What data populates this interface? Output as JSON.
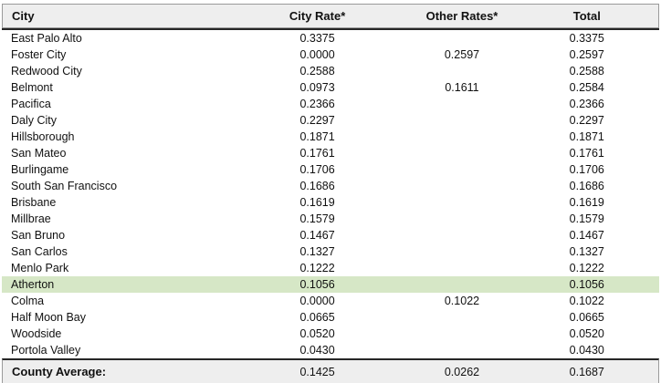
{
  "table": {
    "columns": [
      {
        "label": "City"
      },
      {
        "label": "City Rate*"
      },
      {
        "label": "Other Rates*"
      },
      {
        "label": "Total"
      }
    ],
    "rows": [
      {
        "city": "East Palo Alto",
        "city_rate": "0.3375",
        "other_rates": "",
        "total": "0.3375",
        "highlight": false
      },
      {
        "city": "Foster City",
        "city_rate": "0.0000",
        "other_rates": "0.2597",
        "total": "0.2597",
        "highlight": false
      },
      {
        "city": "Redwood City",
        "city_rate": "0.2588",
        "other_rates": "",
        "total": "0.2588",
        "highlight": false
      },
      {
        "city": "Belmont",
        "city_rate": "0.0973",
        "other_rates": "0.1611",
        "total": "0.2584",
        "highlight": false
      },
      {
        "city": "Pacifica",
        "city_rate": "0.2366",
        "other_rates": "",
        "total": "0.2366",
        "highlight": false
      },
      {
        "city": "Daly City",
        "city_rate": "0.2297",
        "other_rates": "",
        "total": "0.2297",
        "highlight": false
      },
      {
        "city": "Hillsborough",
        "city_rate": "0.1871",
        "other_rates": "",
        "total": "0.1871",
        "highlight": false
      },
      {
        "city": "San Mateo",
        "city_rate": "0.1761",
        "other_rates": "",
        "total": "0.1761",
        "highlight": false
      },
      {
        "city": "Burlingame",
        "city_rate": "0.1706",
        "other_rates": "",
        "total": "0.1706",
        "highlight": false
      },
      {
        "city": "South San Francisco",
        "city_rate": "0.1686",
        "other_rates": "",
        "total": "0.1686",
        "highlight": false
      },
      {
        "city": "Brisbane",
        "city_rate": "0.1619",
        "other_rates": "",
        "total": "0.1619",
        "highlight": false
      },
      {
        "city": "Millbrae",
        "city_rate": "0.1579",
        "other_rates": "",
        "total": "0.1579",
        "highlight": false
      },
      {
        "city": "San Bruno",
        "city_rate": "0.1467",
        "other_rates": "",
        "total": "0.1467",
        "highlight": false
      },
      {
        "city": "San Carlos",
        "city_rate": "0.1327",
        "other_rates": "",
        "total": "0.1327",
        "highlight": false
      },
      {
        "city": "Menlo Park",
        "city_rate": "0.1222",
        "other_rates": "",
        "total": "0.1222",
        "highlight": false
      },
      {
        "city": "Atherton",
        "city_rate": "0.1056",
        "other_rates": "",
        "total": "0.1056",
        "highlight": true
      },
      {
        "city": "Colma",
        "city_rate": "0.0000",
        "other_rates": "0.1022",
        "total": "0.1022",
        "highlight": false
      },
      {
        "city": "Half Moon Bay",
        "city_rate": "0.0665",
        "other_rates": "",
        "total": "0.0665",
        "highlight": false
      },
      {
        "city": "Woodside",
        "city_rate": "0.0520",
        "other_rates": "",
        "total": "0.0520",
        "highlight": false
      },
      {
        "city": "Portola Valley",
        "city_rate": "0.0430",
        "other_rates": "",
        "total": "0.0430",
        "highlight": false
      }
    ],
    "footer": {
      "label": "County Average:",
      "city_rate": "0.1425",
      "other_rates": "0.0262",
      "total": "0.1687"
    },
    "colors": {
      "highlight_row": "#d6e7c6",
      "header_bg": "#eeeeee",
      "footer_bg": "#eeeeee",
      "light_border": "#9a9a9a",
      "heavy_border": "#262626"
    }
  }
}
